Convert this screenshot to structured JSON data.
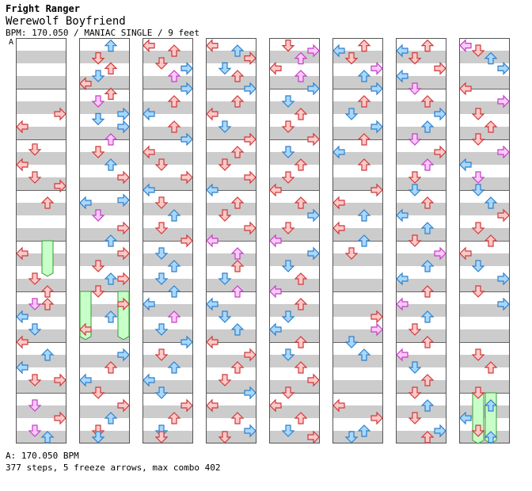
{
  "song": {
    "category": "Fright Ranger",
    "title": "Werewolf Boyfriend",
    "meta": "BPM: 170.050 / MANIAC SINGLE / 9 feet",
    "section_marker": "A"
  },
  "footer": {
    "bpm_line": "A: 170.050 BPM",
    "stats_line": "377 steps, 5 freeze arrows, max combo 402"
  },
  "colors": {
    "red_fill": "#ffc8c8",
    "red_stroke": "#cc3a3a",
    "blue_fill": "#a8d8ff",
    "blue_stroke": "#2f7fc8",
    "pink_fill": "#ffc8ff",
    "pink_stroke": "#c040c0",
    "freeze_fill": "#c8ffc8",
    "freeze_stroke": "#3a9a3a",
    "stripe": "#cccccc"
  },
  "chart_data": {
    "type": "step-chart",
    "lanes": [
      "left",
      "down",
      "up",
      "right"
    ],
    "measures_per_column": 8,
    "columns": [
      {
        "notes": [
          [
            1.5,
            3,
            "r"
          ],
          [
            1.75,
            0,
            "r"
          ],
          [
            2.2,
            1,
            "r"
          ],
          [
            2.5,
            0,
            "r"
          ],
          [
            2.75,
            1,
            "r"
          ],
          [
            2.92,
            3,
            "r"
          ],
          [
            3.25,
            2,
            "r"
          ],
          [
            4.25,
            0,
            "r"
          ],
          [
            4.75,
            1,
            "r"
          ],
          [
            5.0,
            2,
            "r"
          ],
          [
            5.25,
            1,
            "p"
          ],
          [
            5.25,
            2,
            "r"
          ],
          [
            5.5,
            0,
            "b"
          ],
          [
            5.75,
            1,
            "b"
          ],
          [
            6.0,
            0,
            "r"
          ],
          [
            6.25,
            2,
            "b"
          ],
          [
            6.5,
            0,
            "b"
          ],
          [
            6.75,
            1,
            "r"
          ],
          [
            6.75,
            3,
            "r"
          ],
          [
            7.25,
            1,
            "p"
          ],
          [
            7.5,
            3,
            "r"
          ],
          [
            7.75,
            1,
            "p"
          ],
          [
            8.0,
            2,
            "b"
          ]
        ],
        "freezes": [
          [
            4.0,
            4.7,
            2
          ]
        ]
      },
      {
        "notes": [
          [
            0.15,
            2,
            "b"
          ],
          [
            0.4,
            1,
            "r"
          ],
          [
            0.6,
            2,
            "r"
          ],
          [
            0.75,
            1,
            "b"
          ],
          [
            0.9,
            0,
            "r"
          ],
          [
            1.1,
            2,
            "r"
          ],
          [
            1.25,
            1,
            "p"
          ],
          [
            1.5,
            3,
            "b"
          ],
          [
            1.6,
            1,
            "b"
          ],
          [
            1.75,
            3,
            "b"
          ],
          [
            2.0,
            2,
            "p"
          ],
          [
            2.25,
            1,
            "r"
          ],
          [
            2.5,
            2,
            "b"
          ],
          [
            2.75,
            3,
            "r"
          ],
          [
            3.2,
            3,
            "b"
          ],
          [
            3.25,
            0,
            "b"
          ],
          [
            3.5,
            1,
            "p"
          ],
          [
            3.75,
            3,
            "r"
          ],
          [
            4.0,
            2,
            "b"
          ],
          [
            4.25,
            3,
            "r"
          ],
          [
            4.5,
            1,
            "r"
          ],
          [
            4.75,
            2,
            "b"
          ],
          [
            4.75,
            3,
            "r"
          ],
          [
            5.0,
            1,
            "r"
          ],
          [
            5.25,
            3,
            "r"
          ],
          [
            5.5,
            2,
            "b"
          ],
          [
            5.75,
            0,
            "r"
          ],
          [
            6.25,
            3,
            "b"
          ],
          [
            6.5,
            2,
            "r"
          ],
          [
            6.75,
            0,
            "b"
          ],
          [
            7.0,
            1,
            "r"
          ],
          [
            7.25,
            3,
            "r"
          ],
          [
            7.5,
            2,
            "b"
          ],
          [
            7.75,
            1,
            "r"
          ],
          [
            8.0,
            1,
            "b"
          ]
        ],
        "freezes": [
          [
            5.0,
            5.95,
            0
          ],
          [
            5.0,
            5.95,
            3
          ]
        ]
      },
      {
        "notes": [
          [
            0.15,
            0,
            "r"
          ],
          [
            0.25,
            2,
            "r"
          ],
          [
            0.5,
            1,
            "r"
          ],
          [
            0.6,
            3,
            "b"
          ],
          [
            0.75,
            2,
            "p"
          ],
          [
            1.0,
            3,
            "b"
          ],
          [
            1.25,
            2,
            "r"
          ],
          [
            1.5,
            0,
            "b"
          ],
          [
            1.75,
            2,
            "r"
          ],
          [
            2.0,
            3,
            "b"
          ],
          [
            2.25,
            0,
            "r"
          ],
          [
            2.5,
            1,
            "r"
          ],
          [
            2.75,
            3,
            "r"
          ],
          [
            3.0,
            0,
            "b"
          ],
          [
            3.25,
            1,
            "r"
          ],
          [
            3.5,
            2,
            "b"
          ],
          [
            3.75,
            1,
            "r"
          ],
          [
            4.0,
            3,
            "r"
          ],
          [
            4.25,
            1,
            "b"
          ],
          [
            4.5,
            2,
            "b"
          ],
          [
            4.75,
            1,
            "b"
          ],
          [
            5.0,
            2,
            "b"
          ],
          [
            5.25,
            0,
            "b"
          ],
          [
            5.5,
            2,
            "p"
          ],
          [
            5.75,
            1,
            "b"
          ],
          [
            6.0,
            3,
            "b"
          ],
          [
            6.25,
            1,
            "r"
          ],
          [
            6.5,
            2,
            "b"
          ],
          [
            6.75,
            0,
            "b"
          ],
          [
            7.0,
            1,
            "b"
          ],
          [
            7.25,
            3,
            "r"
          ],
          [
            7.5,
            2,
            "r"
          ],
          [
            7.75,
            1,
            "b"
          ],
          [
            8.0,
            1,
            "r"
          ]
        ],
        "freezes": []
      },
      {
        "notes": [
          [
            0.15,
            0,
            "r"
          ],
          [
            0.25,
            2,
            "b"
          ],
          [
            0.4,
            3,
            "r"
          ],
          [
            0.6,
            1,
            "b"
          ],
          [
            0.75,
            2,
            "r"
          ],
          [
            1.0,
            3,
            "b"
          ],
          [
            1.25,
            2,
            "r"
          ],
          [
            1.5,
            0,
            "r"
          ],
          [
            1.75,
            1,
            "b"
          ],
          [
            2.0,
            3,
            "r"
          ],
          [
            2.25,
            2,
            "r"
          ],
          [
            2.5,
            1,
            "r"
          ],
          [
            2.75,
            3,
            "r"
          ],
          [
            3.0,
            0,
            "b"
          ],
          [
            3.25,
            2,
            "r"
          ],
          [
            3.5,
            1,
            "r"
          ],
          [
            3.75,
            3,
            "r"
          ],
          [
            4.0,
            0,
            "p"
          ],
          [
            4.25,
            2,
            "p"
          ],
          [
            4.5,
            2,
            "r"
          ],
          [
            4.75,
            1,
            "b"
          ],
          [
            5.0,
            2,
            "p"
          ],
          [
            5.25,
            0,
            "b"
          ],
          [
            5.5,
            1,
            "b"
          ],
          [
            5.75,
            2,
            "b"
          ],
          [
            6.0,
            0,
            "r"
          ],
          [
            6.25,
            3,
            "r"
          ],
          [
            6.5,
            2,
            "r"
          ],
          [
            6.75,
            1,
            "r"
          ],
          [
            7.0,
            3,
            "b"
          ],
          [
            7.25,
            0,
            "r"
          ],
          [
            7.5,
            2,
            "r"
          ],
          [
            7.75,
            3,
            "b"
          ],
          [
            8.0,
            1,
            "r"
          ]
        ],
        "freezes": []
      },
      {
        "notes": [
          [
            0.15,
            1,
            "r"
          ],
          [
            0.25,
            3,
            "p"
          ],
          [
            0.4,
            2,
            "p"
          ],
          [
            0.6,
            0,
            "r"
          ],
          [
            0.75,
            2,
            "p"
          ],
          [
            1.0,
            3,
            "b"
          ],
          [
            1.25,
            1,
            "b"
          ],
          [
            1.5,
            2,
            "r"
          ],
          [
            1.75,
            1,
            "r"
          ],
          [
            2.0,
            3,
            "r"
          ],
          [
            2.25,
            1,
            "b"
          ],
          [
            2.5,
            2,
            "r"
          ],
          [
            2.75,
            1,
            "r"
          ],
          [
            3.0,
            0,
            "r"
          ],
          [
            3.25,
            2,
            "r"
          ],
          [
            3.5,
            3,
            "b"
          ],
          [
            3.75,
            1,
            "r"
          ],
          [
            4.0,
            0,
            "p"
          ],
          [
            4.25,
            3,
            "b"
          ],
          [
            4.5,
            1,
            "b"
          ],
          [
            4.75,
            2,
            "r"
          ],
          [
            5.0,
            0,
            "p"
          ],
          [
            5.25,
            2,
            "r"
          ],
          [
            5.5,
            1,
            "b"
          ],
          [
            5.75,
            0,
            "b"
          ],
          [
            6.0,
            2,
            "r"
          ],
          [
            6.25,
            1,
            "b"
          ],
          [
            6.5,
            2,
            "r"
          ],
          [
            6.75,
            3,
            "r"
          ],
          [
            7.0,
            1,
            "r"
          ],
          [
            7.25,
            0,
            "r"
          ],
          [
            7.5,
            2,
            "r"
          ],
          [
            7.75,
            1,
            "b"
          ],
          [
            8.0,
            3,
            "r"
          ]
        ],
        "freezes": []
      },
      {
        "notes": [
          [
            0.15,
            2,
            "r"
          ],
          [
            0.25,
            0,
            "b"
          ],
          [
            0.4,
            1,
            "r"
          ],
          [
            0.6,
            3,
            "p"
          ],
          [
            0.75,
            2,
            "b"
          ],
          [
            1.0,
            3,
            "b"
          ],
          [
            1.25,
            2,
            "r"
          ],
          [
            1.5,
            1,
            "b"
          ],
          [
            1.75,
            3,
            "b"
          ],
          [
            2.0,
            2,
            "r"
          ],
          [
            2.25,
            0,
            "b"
          ],
          [
            2.5,
            2,
            "r"
          ],
          [
            3.0,
            3,
            "r"
          ],
          [
            3.25,
            0,
            "r"
          ],
          [
            3.5,
            2,
            "b"
          ],
          [
            3.75,
            0,
            "r"
          ],
          [
            4.0,
            2,
            "b"
          ],
          [
            4.25,
            1,
            "r"
          ],
          [
            5.5,
            3,
            "r"
          ],
          [
            5.75,
            3,
            "p"
          ],
          [
            6.0,
            1,
            "b"
          ],
          [
            6.25,
            2,
            "b"
          ],
          [
            7.25,
            0,
            "r"
          ],
          [
            7.5,
            3,
            "r"
          ],
          [
            7.75,
            2,
            "b"
          ],
          [
            8.0,
            1,
            "b"
          ]
        ],
        "freezes": []
      },
      {
        "notes": [
          [
            0.15,
            2,
            "r"
          ],
          [
            0.25,
            0,
            "b"
          ],
          [
            0.4,
            1,
            "r"
          ],
          [
            0.6,
            3,
            "r"
          ],
          [
            0.75,
            0,
            "b"
          ],
          [
            1.0,
            1,
            "p"
          ],
          [
            1.25,
            2,
            "r"
          ],
          [
            1.5,
            3,
            "b"
          ],
          [
            1.75,
            2,
            "b"
          ],
          [
            2.0,
            1,
            "p"
          ],
          [
            2.25,
            3,
            "r"
          ],
          [
            2.5,
            2,
            "p"
          ],
          [
            2.75,
            1,
            "r"
          ],
          [
            3.0,
            1,
            "b"
          ],
          [
            3.25,
            2,
            "r"
          ],
          [
            3.5,
            0,
            "b"
          ],
          [
            3.75,
            2,
            "b"
          ],
          [
            4.0,
            1,
            "r"
          ],
          [
            4.25,
            3,
            "p"
          ],
          [
            4.5,
            2,
            "b"
          ],
          [
            4.75,
            0,
            "b"
          ],
          [
            5.0,
            2,
            "r"
          ],
          [
            5.25,
            0,
            "p"
          ],
          [
            5.5,
            2,
            "b"
          ],
          [
            5.75,
            1,
            "r"
          ],
          [
            6.0,
            2,
            "r"
          ],
          [
            6.25,
            0,
            "p"
          ],
          [
            6.5,
            1,
            "b"
          ],
          [
            6.75,
            2,
            "r"
          ],
          [
            7.0,
            1,
            "r"
          ],
          [
            7.25,
            2,
            "b"
          ],
          [
            7.5,
            1,
            "r"
          ],
          [
            7.75,
            3,
            "b"
          ],
          [
            8.0,
            2,
            "r"
          ]
        ],
        "freezes": []
      },
      {
        "notes": [
          [
            0.15,
            0,
            "p"
          ],
          [
            0.25,
            1,
            "r"
          ],
          [
            0.4,
            2,
            "b"
          ],
          [
            0.6,
            3,
            "b"
          ],
          [
            1.0,
            0,
            "r"
          ],
          [
            1.25,
            3,
            "p"
          ],
          [
            1.5,
            1,
            "r"
          ],
          [
            1.75,
            2,
            "r"
          ],
          [
            2.0,
            1,
            "r"
          ],
          [
            2.25,
            3,
            "p"
          ],
          [
            2.5,
            0,
            "b"
          ],
          [
            2.75,
            1,
            "p"
          ],
          [
            3.0,
            1,
            "b"
          ],
          [
            3.25,
            2,
            "b"
          ],
          [
            3.5,
            3,
            "r"
          ],
          [
            3.75,
            1,
            "r"
          ],
          [
            4.0,
            2,
            "r"
          ],
          [
            4.25,
            0,
            "r"
          ],
          [
            4.5,
            1,
            "b"
          ],
          [
            4.75,
            3,
            "b"
          ],
          [
            5.0,
            1,
            "r"
          ],
          [
            5.25,
            3,
            "b"
          ],
          [
            6.25,
            1,
            "r"
          ],
          [
            6.5,
            2,
            "r"
          ],
          [
            7.0,
            1,
            "r"
          ],
          [
            7.25,
            2,
            "b"
          ],
          [
            7.5,
            0,
            "b"
          ],
          [
            7.75,
            1,
            "r"
          ],
          [
            8.0,
            2,
            "b"
          ]
        ],
        "freezes": [
          [
            7.0,
            8.0,
            1
          ],
          [
            7.0,
            8.0,
            2
          ]
        ]
      }
    ]
  }
}
